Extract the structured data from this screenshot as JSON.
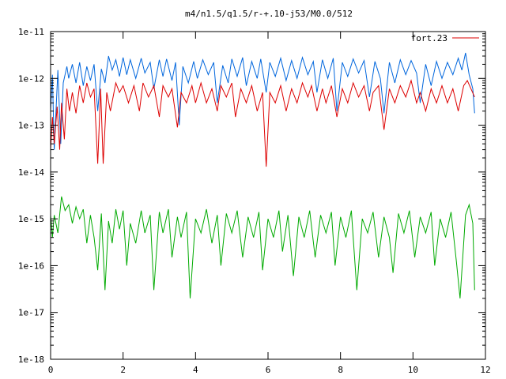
{
  "chart_data": {
    "type": "line",
    "title": "m4/n1.5/q1.5/r-+.10-j53/M0.0/512",
    "xlabel": "",
    "ylabel": "",
    "xlim": [
      0,
      12
    ],
    "ylim": [
      1e-18,
      1e-11
    ],
    "yscale": "log",
    "x_ticks": [
      0,
      2,
      4,
      6,
      8,
      10,
      12
    ],
    "x_tick_labels": [
      "0",
      "2",
      "4",
      "6",
      "8",
      "10",
      "12"
    ],
    "y_ticks": [
      1e-18,
      1e-17,
      1e-16,
      1e-15,
      1e-14,
      1e-13,
      1e-12,
      1e-11
    ],
    "y_tick_labels": [
      "1e-18",
      "1e-17",
      "1e-16",
      "1e-15",
      "1e-14",
      "1e-13",
      "1e-12",
      "1e-11"
    ],
    "grid": false,
    "legend_position": "top-right",
    "x_end": 11.7,
    "series": [
      {
        "name": "fort.23",
        "color": "#dd0000",
        "points": [
          [
            0.0,
            3e-14
          ],
          [
            0.05,
            1.5e-13
          ],
          [
            0.1,
            4e-14
          ],
          [
            0.18,
            2.5e-13
          ],
          [
            0.25,
            3e-14
          ],
          [
            0.3,
            3e-13
          ],
          [
            0.38,
            5e-14
          ],
          [
            0.45,
            6e-13
          ],
          [
            0.52,
            2e-13
          ],
          [
            0.6,
            5e-13
          ],
          [
            0.7,
            1.8e-13
          ],
          [
            0.8,
            7e-13
          ],
          [
            0.9,
            3e-13
          ],
          [
            1.0,
            8e-13
          ],
          [
            1.1,
            4e-13
          ],
          [
            1.2,
            6e-13
          ],
          [
            1.3,
            1.5e-14
          ],
          [
            1.38,
            6e-13
          ],
          [
            1.45,
            1.5e-14
          ],
          [
            1.55,
            5e-13
          ],
          [
            1.65,
            2e-13
          ],
          [
            1.8,
            8e-13
          ],
          [
            1.9,
            5e-13
          ],
          [
            2.0,
            7e-13
          ],
          [
            2.15,
            3e-13
          ],
          [
            2.3,
            7e-13
          ],
          [
            2.45,
            2e-13
          ],
          [
            2.55,
            8e-13
          ],
          [
            2.7,
            4e-13
          ],
          [
            2.85,
            7e-13
          ],
          [
            3.0,
            1.5e-13
          ],
          [
            3.1,
            7e-13
          ],
          [
            3.25,
            4e-13
          ],
          [
            3.35,
            6e-13
          ],
          [
            3.5,
            9e-14
          ],
          [
            3.6,
            5e-13
          ],
          [
            3.75,
            3e-13
          ],
          [
            3.9,
            7e-13
          ],
          [
            4.0,
            3e-13
          ],
          [
            4.15,
            8e-13
          ],
          [
            4.3,
            3e-13
          ],
          [
            4.45,
            6e-13
          ],
          [
            4.6,
            2e-13
          ],
          [
            4.7,
            7e-13
          ],
          [
            4.85,
            4e-13
          ],
          [
            5.0,
            8e-13
          ],
          [
            5.1,
            1.5e-13
          ],
          [
            5.25,
            6e-13
          ],
          [
            5.4,
            3e-13
          ],
          [
            5.55,
            7e-13
          ],
          [
            5.7,
            2e-13
          ],
          [
            5.85,
            5e-13
          ],
          [
            5.95,
            1.3e-14
          ],
          [
            6.05,
            5e-13
          ],
          [
            6.2,
            3e-13
          ],
          [
            6.35,
            7e-13
          ],
          [
            6.5,
            2e-13
          ],
          [
            6.65,
            6e-13
          ],
          [
            6.8,
            3e-13
          ],
          [
            6.95,
            8e-13
          ],
          [
            7.1,
            4e-13
          ],
          [
            7.2,
            7e-13
          ],
          [
            7.35,
            2e-13
          ],
          [
            7.5,
            6e-13
          ],
          [
            7.6,
            3e-13
          ],
          [
            7.75,
            7e-13
          ],
          [
            7.9,
            1.5e-13
          ],
          [
            8.05,
            6e-13
          ],
          [
            8.2,
            3e-13
          ],
          [
            8.35,
            8e-13
          ],
          [
            8.5,
            4e-13
          ],
          [
            8.65,
            7e-13
          ],
          [
            8.8,
            2e-13
          ],
          [
            8.9,
            5e-13
          ],
          [
            9.05,
            7e-13
          ],
          [
            9.2,
            8e-14
          ],
          [
            9.35,
            6e-13
          ],
          [
            9.5,
            3e-13
          ],
          [
            9.65,
            7e-13
          ],
          [
            9.8,
            4e-13
          ],
          [
            9.95,
            9e-13
          ],
          [
            10.1,
            3e-13
          ],
          [
            10.2,
            5e-13
          ],
          [
            10.35,
            2e-13
          ],
          [
            10.5,
            6e-13
          ],
          [
            10.65,
            3e-13
          ],
          [
            10.8,
            7e-13
          ],
          [
            10.95,
            3e-13
          ],
          [
            11.1,
            6e-13
          ],
          [
            11.25,
            2e-13
          ],
          [
            11.4,
            7e-13
          ],
          [
            11.5,
            9e-13
          ],
          [
            11.6,
            6e-13
          ],
          [
            11.7,
            4e-13
          ]
        ]
      },
      {
        "name": "",
        "color": "#0066dd",
        "points": [
          [
            0.0,
            2e-13
          ],
          [
            0.05,
            1.2e-12
          ],
          [
            0.1,
            3e-14
          ],
          [
            0.2,
            1.5e-12
          ],
          [
            0.28,
            4e-14
          ],
          [
            0.35,
            8e-13
          ],
          [
            0.45,
            1.8e-12
          ],
          [
            0.5,
            1e-12
          ],
          [
            0.6,
            2e-12
          ],
          [
            0.7,
            8e-13
          ],
          [
            0.8,
            2.2e-12
          ],
          [
            0.9,
            7e-13
          ],
          [
            1.0,
            1.8e-12
          ],
          [
            1.1,
            9e-13
          ],
          [
            1.2,
            2e-12
          ],
          [
            1.3,
            2e-13
          ],
          [
            1.4,
            1.6e-12
          ],
          [
            1.5,
            8e-13
          ],
          [
            1.6,
            3e-12
          ],
          [
            1.7,
            1.5e-12
          ],
          [
            1.8,
            2.5e-12
          ],
          [
            1.9,
            1.1e-12
          ],
          [
            2.0,
            2.8e-12
          ],
          [
            2.1,
            1.2e-12
          ],
          [
            2.2,
            2.5e-12
          ],
          [
            2.35,
            1e-12
          ],
          [
            2.5,
            2.7e-12
          ],
          [
            2.6,
            1.3e-12
          ],
          [
            2.75,
            2.2e-12
          ],
          [
            2.85,
            6e-13
          ],
          [
            3.0,
            2.5e-12
          ],
          [
            3.1,
            1.1e-12
          ],
          [
            3.2,
            2.6e-12
          ],
          [
            3.35,
            9e-13
          ],
          [
            3.45,
            2.2e-12
          ],
          [
            3.55,
            1e-13
          ],
          [
            3.65,
            1.8e-12
          ],
          [
            3.8,
            8e-13
          ],
          [
            3.95,
            2.3e-12
          ],
          [
            4.05,
            1e-12
          ],
          [
            4.2,
            2.5e-12
          ],
          [
            4.35,
            1.2e-12
          ],
          [
            4.5,
            2.2e-12
          ],
          [
            4.6,
            3e-13
          ],
          [
            4.75,
            1.9e-12
          ],
          [
            4.9,
            8e-13
          ],
          [
            5.0,
            2.6e-12
          ],
          [
            5.15,
            1.1e-12
          ],
          [
            5.3,
            2.8e-12
          ],
          [
            5.4,
            7e-13
          ],
          [
            5.55,
            2.3e-12
          ],
          [
            5.7,
            1e-12
          ],
          [
            5.8,
            2.6e-12
          ],
          [
            5.95,
            5e-13
          ],
          [
            6.05,
            2.2e-12
          ],
          [
            6.2,
            1.1e-12
          ],
          [
            6.35,
            2.7e-12
          ],
          [
            6.5,
            9e-13
          ],
          [
            6.65,
            2.4e-12
          ],
          [
            6.8,
            1e-12
          ],
          [
            6.95,
            2.8e-12
          ],
          [
            7.1,
            1.2e-12
          ],
          [
            7.25,
            2.3e-12
          ],
          [
            7.35,
            5e-13
          ],
          [
            7.5,
            2.5e-12
          ],
          [
            7.65,
            1e-12
          ],
          [
            7.8,
            2.7e-12
          ],
          [
            7.9,
            2e-13
          ],
          [
            8.05,
            2.2e-12
          ],
          [
            8.2,
            1.1e-12
          ],
          [
            8.35,
            2.6e-12
          ],
          [
            8.5,
            1.3e-12
          ],
          [
            8.65,
            2.4e-12
          ],
          [
            8.8,
            4e-13
          ],
          [
            8.95,
            2.3e-12
          ],
          [
            9.1,
            1e-12
          ],
          [
            9.2,
            1.8e-13
          ],
          [
            9.35,
            2.2e-12
          ],
          [
            9.5,
            8e-13
          ],
          [
            9.65,
            2.5e-12
          ],
          [
            9.8,
            1.2e-12
          ],
          [
            9.95,
            2.4e-12
          ],
          [
            10.1,
            1.3e-12
          ],
          [
            10.2,
            3e-13
          ],
          [
            10.35,
            2e-12
          ],
          [
            10.5,
            7e-13
          ],
          [
            10.65,
            2.3e-12
          ],
          [
            10.8,
            1e-12
          ],
          [
            10.95,
            2.2e-12
          ],
          [
            11.1,
            1.2e-12
          ],
          [
            11.25,
            2.7e-12
          ],
          [
            11.35,
            1.5e-12
          ],
          [
            11.45,
            3.5e-12
          ],
          [
            11.55,
            1.2e-12
          ],
          [
            11.65,
            6e-13
          ],
          [
            11.7,
            1.8e-13
          ]
        ]
      },
      {
        "name": "",
        "color": "#00aa00",
        "points": [
          [
            0.0,
            1.2e-15
          ],
          [
            0.05,
            4e-16
          ],
          [
            0.1,
            1.2e-15
          ],
          [
            0.2,
            5e-16
          ],
          [
            0.3,
            3e-15
          ],
          [
            0.4,
            1.5e-15
          ],
          [
            0.5,
            2e-15
          ],
          [
            0.6,
            8e-16
          ],
          [
            0.7,
            1.8e-15
          ],
          [
            0.8,
            1e-15
          ],
          [
            0.9,
            1.6e-15
          ],
          [
            1.0,
            3e-16
          ],
          [
            1.1,
            1.2e-15
          ],
          [
            1.2,
            4e-16
          ],
          [
            1.3,
            8e-17
          ],
          [
            1.4,
            1.3e-15
          ],
          [
            1.5,
            3e-17
          ],
          [
            1.6,
            9e-16
          ],
          [
            1.7,
            3e-16
          ],
          [
            1.8,
            1.6e-15
          ],
          [
            1.9,
            6e-16
          ],
          [
            2.0,
            1.5e-15
          ],
          [
            2.1,
            1e-16
          ],
          [
            2.2,
            8e-16
          ],
          [
            2.35,
            3e-16
          ],
          [
            2.5,
            1.5e-15
          ],
          [
            2.6,
            5e-16
          ],
          [
            2.75,
            1.2e-15
          ],
          [
            2.85,
            3e-17
          ],
          [
            3.0,
            1.4e-15
          ],
          [
            3.1,
            5e-16
          ],
          [
            3.25,
            1.6e-15
          ],
          [
            3.35,
            1.5e-16
          ],
          [
            3.5,
            1.1e-15
          ],
          [
            3.6,
            4e-16
          ],
          [
            3.75,
            1.4e-15
          ],
          [
            3.85,
            2e-17
          ],
          [
            4.0,
            1e-15
          ],
          [
            4.15,
            5e-16
          ],
          [
            4.3,
            1.6e-15
          ],
          [
            4.45,
            3e-16
          ],
          [
            4.6,
            1.2e-15
          ],
          [
            4.7,
            1e-16
          ],
          [
            4.85,
            1.3e-15
          ],
          [
            5.0,
            5e-16
          ],
          [
            5.15,
            1.5e-15
          ],
          [
            5.3,
            1.5e-16
          ],
          [
            5.45,
            1.1e-15
          ],
          [
            5.6,
            4e-16
          ],
          [
            5.75,
            1.4e-15
          ],
          [
            5.85,
            8e-17
          ],
          [
            6.0,
            1e-15
          ],
          [
            6.15,
            4e-16
          ],
          [
            6.3,
            1.5e-15
          ],
          [
            6.4,
            2e-16
          ],
          [
            6.55,
            1.2e-15
          ],
          [
            6.7,
            6e-17
          ],
          [
            6.85,
            1.1e-15
          ],
          [
            7.0,
            4e-16
          ],
          [
            7.15,
            1.5e-15
          ],
          [
            7.3,
            1.5e-16
          ],
          [
            7.45,
            1.2e-15
          ],
          [
            7.6,
            5e-16
          ],
          [
            7.75,
            1.4e-15
          ],
          [
            7.85,
            1e-16
          ],
          [
            8.0,
            1.1e-15
          ],
          [
            8.15,
            4e-16
          ],
          [
            8.3,
            1.5e-15
          ],
          [
            8.45,
            3e-17
          ],
          [
            8.6,
            1e-15
          ],
          [
            8.75,
            5e-16
          ],
          [
            8.9,
            1.4e-15
          ],
          [
            9.05,
            1.5e-16
          ],
          [
            9.2,
            1.1e-15
          ],
          [
            9.35,
            4e-16
          ],
          [
            9.45,
            7e-17
          ],
          [
            9.6,
            1.3e-15
          ],
          [
            9.75,
            5e-16
          ],
          [
            9.9,
            1.5e-15
          ],
          [
            10.05,
            1.5e-16
          ],
          [
            10.2,
            1.1e-15
          ],
          [
            10.35,
            5e-16
          ],
          [
            10.5,
            1.4e-15
          ],
          [
            10.6,
            1e-16
          ],
          [
            10.75,
            1e-15
          ],
          [
            10.9,
            4e-16
          ],
          [
            11.05,
            1.4e-15
          ],
          [
            11.2,
            1.2e-16
          ],
          [
            11.3,
            2e-17
          ],
          [
            11.45,
            1.2e-15
          ],
          [
            11.55,
            2e-15
          ],
          [
            11.65,
            8e-16
          ],
          [
            11.7,
            3e-17
          ]
        ]
      }
    ]
  }
}
